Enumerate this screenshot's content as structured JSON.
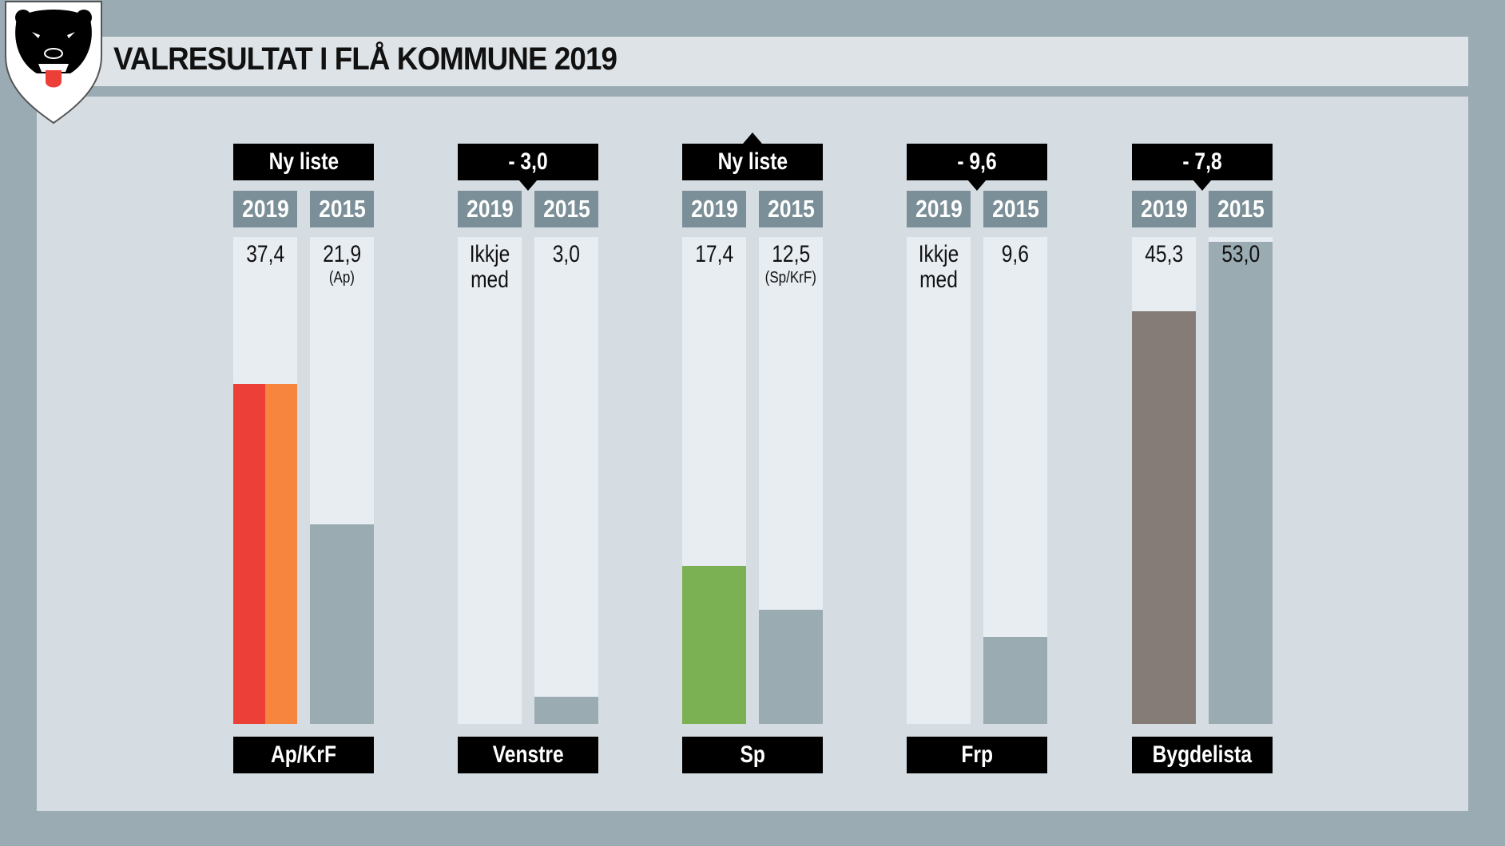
{
  "title": "VALRESULTAT I FLÅ KOMMUNE 2019",
  "logo": {
    "icon": "bear-coat-of-arms"
  },
  "colors": {
    "bg": "#9aabb3",
    "panel": "#d6dde2",
    "year_box": "#7b8f98",
    "grey_2015": "#9aabb2",
    "ap": "#ec3f37",
    "krf": "#f7853e",
    "sp": "#7bb153",
    "bygdelista": "#867c77"
  },
  "chart_data": {
    "type": "bar",
    "title": "VALRESULTAT I FLÅ KOMMUNE 2019",
    "ylim": [
      0,
      53.5
    ],
    "years": [
      "2019",
      "2015"
    ],
    "groups": [
      {
        "party": "Ap/KrF",
        "change": "Ny liste",
        "arrow": "none",
        "v2019": 37.4,
        "t2019": "37,4",
        "n2019": "",
        "v2015": 21.9,
        "t2015": "21,9",
        "n2015": "(Ap)",
        "c2019": [
          "#ec3f37",
          "#f7853e"
        ],
        "c2015": "#9aabb2"
      },
      {
        "party": "Venstre",
        "change": "- 3,0",
        "arrow": "down",
        "v2019": 0,
        "t2019": "Ikkje med",
        "n2019": "",
        "v2015": 3.0,
        "t2015": "3,0",
        "n2015": "",
        "c2019": [
          "#e8edf2"
        ],
        "c2015": "#9aabb2"
      },
      {
        "party": "Sp",
        "change": "Ny liste",
        "arrow": "up",
        "v2019": 17.4,
        "t2019": "17,4",
        "n2019": "",
        "v2015": 12.5,
        "t2015": "12,5",
        "n2015": "(Sp/KrF)",
        "c2019": [
          "#7bb153"
        ],
        "c2015": "#9aabb2"
      },
      {
        "party": "Frp",
        "change": "- 9,6",
        "arrow": "down",
        "v2019": 0,
        "t2019": "Ikkje med",
        "n2019": "",
        "v2015": 9.6,
        "t2015": "9,6",
        "n2015": "",
        "c2019": [
          "#e8edf2"
        ],
        "c2015": "#9aabb2"
      },
      {
        "party": "Bygdelista",
        "change": "- 7,8",
        "arrow": "down",
        "v2019": 45.3,
        "t2019": "45,3",
        "n2019": "",
        "v2015": 53.0,
        "t2015": "53,0",
        "n2015": "",
        "c2019": [
          "#867c77"
        ],
        "c2015": "#9aabb2"
      }
    ]
  }
}
